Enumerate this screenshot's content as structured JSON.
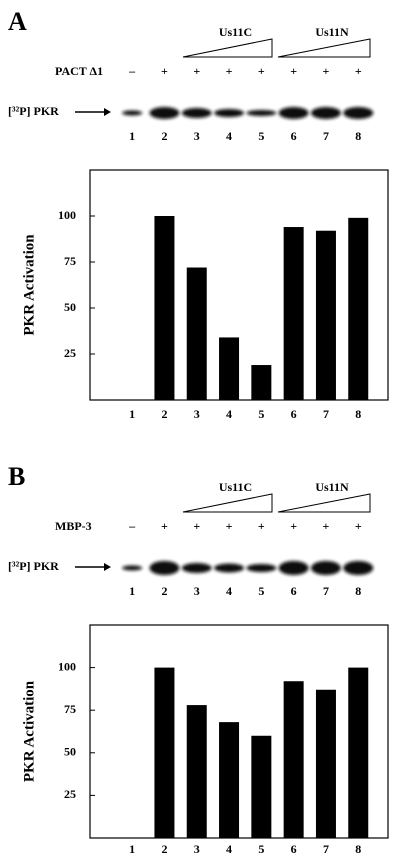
{
  "chart_data": [
    {
      "type": "bar",
      "panel": "A",
      "treatment": "PACT Δ1",
      "lane_signs": [
        "–",
        "+",
        "+",
        "+",
        "+",
        "+",
        "+",
        "+"
      ],
      "groups": [
        "Us11C",
        "Us11N"
      ],
      "blot_label": "[³²P] PKR",
      "ylabel": "PKR Activation",
      "categories": [
        "1",
        "2",
        "3",
        "4",
        "5",
        "6",
        "7",
        "8"
      ],
      "values": [
        0,
        100,
        72,
        34,
        19,
        94,
        92,
        99
      ],
      "color": "#000000",
      "ylim": [
        0,
        125
      ],
      "yticks": [
        25,
        50,
        75,
        100
      ]
    },
    {
      "type": "bar",
      "panel": "B",
      "treatment": "MBP-3",
      "lane_signs": [
        "–",
        "+",
        "+",
        "+",
        "+",
        "+",
        "+",
        "+"
      ],
      "groups": [
        "Us11C",
        "Us11N"
      ],
      "blot_label": "[³²P] PKR",
      "ylabel": "PKR Activation",
      "categories": [
        "1",
        "2",
        "3",
        "4",
        "5",
        "6",
        "7",
        "8"
      ],
      "values": [
        0,
        100,
        78,
        68,
        60,
        92,
        87,
        100
      ],
      "color": "#000000",
      "ylim": [
        0,
        125
      ],
      "yticks": [
        25,
        50,
        75,
        100
      ]
    }
  ]
}
